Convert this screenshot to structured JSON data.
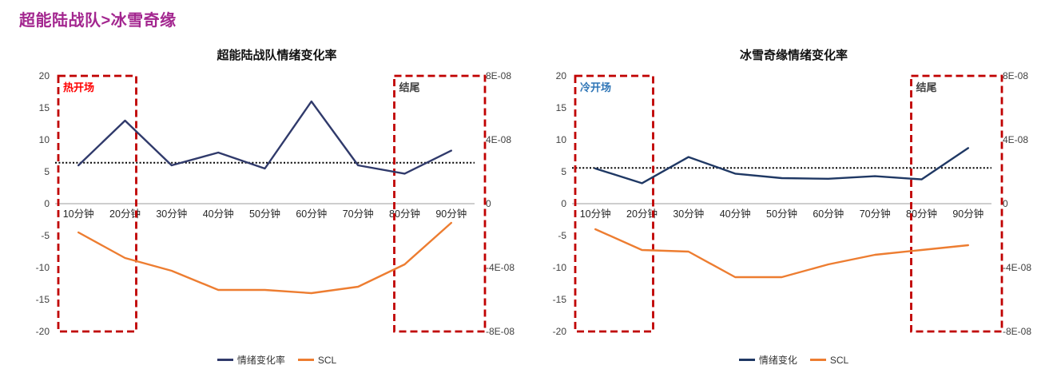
{
  "page": {
    "title": "超能陆战队>冰雪奇缘"
  },
  "chart_data": [
    {
      "type": "line",
      "title": "超能陆战队情绪变化率",
      "categories": [
        "10分钟",
        "20分钟",
        "30分钟",
        "40分钟",
        "50分钟",
        "60分钟",
        "70分钟",
        "80分钟",
        "90分钟"
      ],
      "series": [
        {
          "name": "情绪变化率",
          "axis": "left",
          "color": "#303a6b",
          "values": [
            6,
            13,
            6,
            8,
            5.5,
            16,
            6,
            4.7,
            8.3
          ]
        },
        {
          "name": "SCL",
          "axis": "right",
          "color": "#ED7D31",
          "values": [
            -1.8e-08,
            -3.4e-08,
            -4.2e-08,
            -5.4e-08,
            -5.4e-08,
            -5.6e-08,
            -5.2e-08,
            -3.8e-08,
            -1.2e-08
          ]
        }
      ],
      "average_line": 6.4,
      "left_axis": {
        "min": -20,
        "max": 20,
        "step": 5,
        "labels": [
          "20",
          "15",
          "10",
          "5",
          "0",
          "-5",
          "-10",
          "-15",
          "-20"
        ]
      },
      "right_axis": {
        "min": -8e-08,
        "max": 8e-08,
        "labels": [
          "8E-08",
          "4E-08",
          "0",
          "-4E-08",
          "-8E-08"
        ]
      },
      "annotations": [
        {
          "label": "热开场",
          "color": "#FF0000",
          "span": [
            0,
            1
          ]
        },
        {
          "label": "结尾",
          "color": "#404040",
          "span": [
            7,
            8
          ]
        }
      ],
      "grid": false,
      "legend_position": "bottom"
    },
    {
      "type": "line",
      "title": "冰雪奇缘情绪变化率",
      "categories": [
        "10分钟",
        "20分钟",
        "30分钟",
        "40分钟",
        "50分钟",
        "60分钟",
        "70分钟",
        "80分钟",
        "90分钟"
      ],
      "series": [
        {
          "name": "情绪变化",
          "axis": "left",
          "color": "#1f3864",
          "values": [
            5.5,
            3.2,
            7.3,
            4.7,
            4.0,
            3.9,
            4.3,
            3.8,
            8.7
          ]
        },
        {
          "name": "SCL",
          "axis": "right",
          "color": "#ED7D31",
          "values": [
            -1.6e-08,
            -2.9e-08,
            -3e-08,
            -4.6e-08,
            -4.6e-08,
            -3.8e-08,
            -3.2e-08,
            -2.9e-08,
            -2.6e-08
          ]
        }
      ],
      "average_line": 5.6,
      "left_axis": {
        "min": -20,
        "max": 20,
        "step": 5,
        "labels": [
          "20",
          "15",
          "10",
          "5",
          "0",
          "-5",
          "-10",
          "-15",
          "-20"
        ]
      },
      "right_axis": {
        "min": -8e-08,
        "max": 8e-08,
        "labels": [
          "8E-08",
          "4E-08",
          "0",
          "-4E-08",
          "-8E-08"
        ]
      },
      "annotations": [
        {
          "label": "冷开场",
          "color": "#2E75B6",
          "span": [
            0,
            1
          ]
        },
        {
          "label": "结尾",
          "color": "#404040",
          "span": [
            7,
            8
          ]
        }
      ],
      "grid": false,
      "legend_position": "bottom"
    }
  ]
}
